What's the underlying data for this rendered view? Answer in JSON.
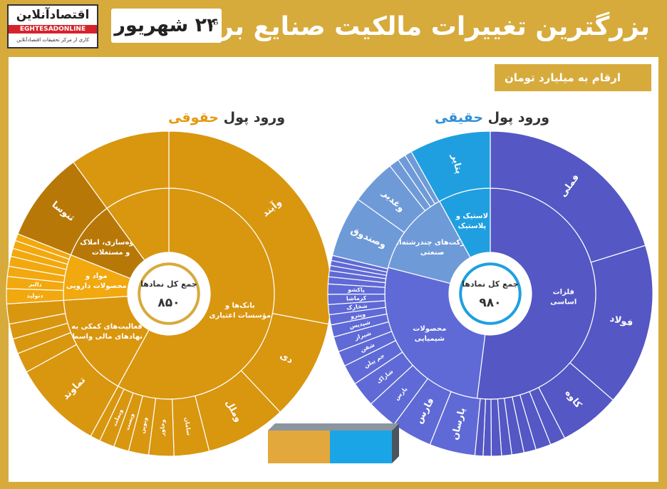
{
  "header": {
    "title": "بزرگترین تغییرات مالکیت صنایع برتر",
    "date": "۲۴ شهریور",
    "logo_name": "اقتصادآنلاین",
    "logo_latin": "EGHTESADONLINE",
    "logo_tagline": "کاری از مرکز تحقیقات اقتصادآنلاین"
  },
  "unit_label": "ارقام به میلیارد تومان",
  "colors": {
    "gold": "#d7aa3c",
    "legal": "#d9960f",
    "legal_dark": "#b87808",
    "real": "#5457c4",
    "real_light": "#6f9ad8",
    "real_cyan": "#1f9fe0"
  },
  "chart_data": [
    {
      "type": "sunburst",
      "title_prefix": "ورود پول",
      "title_highlight": "حقوقی",
      "center_label": "جمع کل نمادها",
      "center_value": "۸۵۰",
      "inner_ring": [
        {
          "label": "بانک‌ها و مؤسسات اعتباری",
          "value": 58
        },
        {
          "label": "فعالیت‌های کمکی به نهادهای مالی واسط",
          "value": 16
        },
        {
          "label": "مواد و محصولات دارویی",
          "value": 7
        },
        {
          "label": "انبوه‌سازی، املاک و مستغلات",
          "value": 9
        },
        {
          "label": "",
          "value": 10
        }
      ],
      "outer_ring": [
        {
          "label": "وآیند",
          "value": 28,
          "group": 0
        },
        {
          "label": "دی",
          "value": 10,
          "group": 0
        },
        {
          "label": "وملل",
          "value": 8,
          "group": 0
        },
        {
          "label": "سامان",
          "value": 3.5,
          "group": 0
        },
        {
          "label": "وخاور",
          "value": 2.5,
          "group": 0
        },
        {
          "label": "ونوین",
          "value": 2,
          "group": 0
        },
        {
          "label": "وپست",
          "value": 1.5,
          "group": 0
        },
        {
          "label": "وبملت",
          "value": 1.5,
          "group": 0
        },
        {
          "label": "",
          "value": 1,
          "group": 0
        },
        {
          "label": "تماوند",
          "value": 9,
          "group": 1
        },
        {
          "label": "",
          "value": 2,
          "group": 1
        },
        {
          "label": "",
          "value": 1.5,
          "group": 1
        },
        {
          "label": "",
          "value": 1.5,
          "group": 1
        },
        {
          "label": "",
          "value": 2,
          "group": 1
        },
        {
          "label": "دتولید",
          "value": 1.5,
          "group": 2
        },
        {
          "label": "دالبر",
          "value": 1.2,
          "group": 2
        },
        {
          "label": "",
          "value": 1,
          "group": 2
        },
        {
          "label": "",
          "value": 1,
          "group": 2
        },
        {
          "label": "",
          "value": 0.8,
          "group": 2
        },
        {
          "label": "",
          "value": 0.8,
          "group": 2
        },
        {
          "label": "",
          "value": 0.7,
          "group": 2
        },
        {
          "label": "ثنوسا",
          "value": 9,
          "group": 3
        },
        {
          "label": "",
          "value": 10,
          "group": 4
        }
      ]
    },
    {
      "type": "sunburst",
      "title_prefix": "ورود پول",
      "title_highlight": "حقیقی",
      "center_label": "جمع کل نمادها",
      "center_value": "۹۸۰",
      "inner_ring": [
        {
          "label": "فلزات اساسی",
          "value": 52
        },
        {
          "label": "محصولات شیمیایی",
          "value": 27
        },
        {
          "label": "شرکت‌های چندرشته‌ای صنعتی",
          "value": 13
        },
        {
          "label": "لاستیک و پلاستیک",
          "value": 8
        }
      ],
      "outer_ring": [
        {
          "label": "فملی",
          "value": 20,
          "group": 0
        },
        {
          "label": "فولاد",
          "value": 16,
          "group": 0
        },
        {
          "label": "کاوه",
          "value": 6,
          "group": 0
        },
        {
          "label": "",
          "value": 1.5,
          "group": 0
        },
        {
          "label": "",
          "value": 1.5,
          "group": 0
        },
        {
          "label": "",
          "value": 1.2,
          "group": 0
        },
        {
          "label": "",
          "value": 1.2,
          "group": 0
        },
        {
          "label": "",
          "value": 1,
          "group": 0
        },
        {
          "label": "",
          "value": 1,
          "group": 0
        },
        {
          "label": "",
          "value": 0.8,
          "group": 0
        },
        {
          "label": "",
          "value": 0.8,
          "group": 0
        },
        {
          "label": "پارسان",
          "value": 4.5,
          "group": 1
        },
        {
          "label": "فارس",
          "value": 4,
          "group": 1
        },
        {
          "label": "پارس",
          "value": 3,
          "group": 1
        },
        {
          "label": "شاراک",
          "value": 2.5,
          "group": 1
        },
        {
          "label": "جم پیلن",
          "value": 2,
          "group": 1
        },
        {
          "label": "شفن",
          "value": 1.5,
          "group": 1
        },
        {
          "label": "شیراز",
          "value": 1.5,
          "group": 1
        },
        {
          "label": "شپدیس",
          "value": 1.2,
          "group": 1
        },
        {
          "label": "وپترو",
          "value": 1,
          "group": 1
        },
        {
          "label": "شخارک",
          "value": 1,
          "group": 1
        },
        {
          "label": "کرماشا",
          "value": 1,
          "group": 1
        },
        {
          "label": "پاکشو",
          "value": 1,
          "group": 1
        },
        {
          "label": "",
          "value": 0.7,
          "group": 1
        },
        {
          "label": "",
          "value": 0.6,
          "group": 1
        },
        {
          "label": "",
          "value": 0.5,
          "group": 1
        },
        {
          "label": "",
          "value": 0.5,
          "group": 1
        },
        {
          "label": "",
          "value": 0.5,
          "group": 1
        },
        {
          "label": "وصندوق",
          "value": 6,
          "group": 2
        },
        {
          "label": "وغدیر",
          "value": 4.5,
          "group": 2
        },
        {
          "label": "",
          "value": 1,
          "group": 2
        },
        {
          "label": "",
          "value": 0.8,
          "group": 2
        },
        {
          "label": "",
          "value": 0.7,
          "group": 2
        },
        {
          "label": "پتایر",
          "value": 8,
          "group": 3
        }
      ]
    }
  ]
}
